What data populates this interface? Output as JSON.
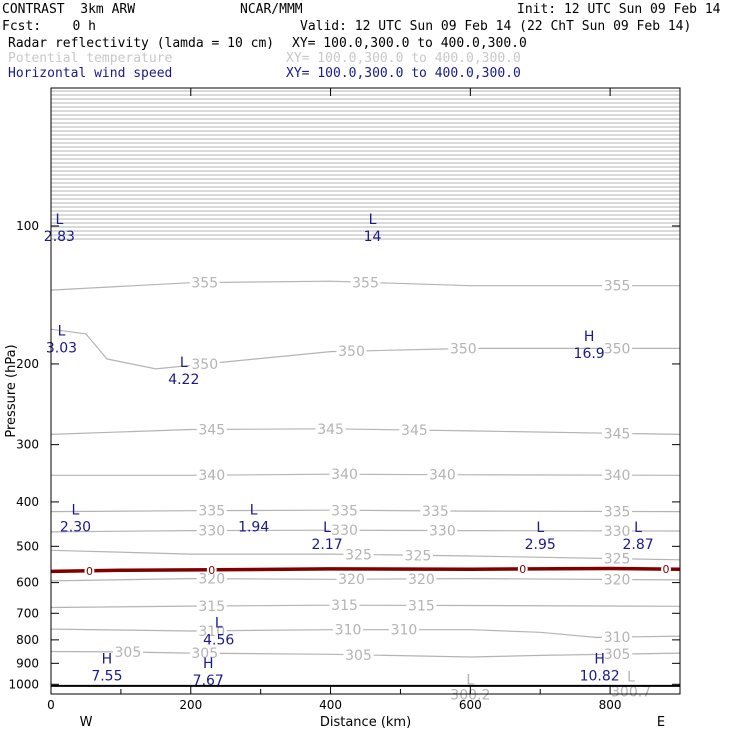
{
  "header": {
    "model": "CONTRAST  3km ARW",
    "center": "NCAR/MMM",
    "init": "Init: 12 UTC Sun 09 Feb 14",
    "fcst": "Fcst:    0 h",
    "valid": "Valid: 12 UTC Sun 09 Feb 14 (22 ChT Sun 09 Feb 14)",
    "fields": [
      {
        "name": "Radar reflectivity (lamda = 10 cm)",
        "xy": "XY= 100.0,300.0 to 400.0,300.0",
        "color": "#000000"
      },
      {
        "name": "Potential temperature",
        "xy": "XY= 100.0,300.0 to 400.0,300.0",
        "color": "#c8c8c8"
      },
      {
        "name": "Horizontal wind speed",
        "xy": "XY= 100.0,300.0 to 400.0,300.0",
        "color": "#1a1a8c"
      }
    ]
  },
  "chart_data": {
    "type": "line",
    "xlabel": "Distance (km)",
    "ylabel": "Pressure (hPa)",
    "xlim": [
      0,
      900
    ],
    "ylim": [
      1050,
      50
    ],
    "y_scale": "log",
    "x_ticks": [
      "0",
      "200",
      "400",
      "600",
      "800"
    ],
    "y_ticks": [
      "100",
      "200",
      "300",
      "400",
      "500",
      "600",
      "700",
      "800",
      "900",
      "1000"
    ],
    "x_end_labels": [
      "W",
      "E"
    ],
    "colors": {
      "theta": "#b4b4b4",
      "wind": "#1a1a8c",
      "trop": "#800000",
      "axis": "#000000"
    },
    "theta_contours": [
      {
        "label": "355",
        "points": [
          [
            0,
            138
          ],
          [
            200,
            133
          ],
          [
            400,
            132
          ],
          [
            600,
            135
          ],
          [
            900,
            135
          ]
        ],
        "label_x": [
          220,
          450,
          810
        ]
      },
      {
        "label": "350",
        "points": [
          [
            0,
            168
          ],
          [
            50,
            172
          ],
          [
            80,
            195
          ],
          [
            150,
            205
          ],
          [
            250,
            198
          ],
          [
            400,
            188
          ],
          [
            600,
            185
          ],
          [
            900,
            185
          ]
        ],
        "label_x": [
          220,
          430,
          590,
          810
        ]
      },
      {
        "label": "345",
        "points": [
          [
            0,
            285
          ],
          [
            200,
            278
          ],
          [
            400,
            277
          ],
          [
            600,
            280
          ],
          [
            900,
            285
          ]
        ],
        "label_x": [
          230,
          400,
          520,
          810
        ]
      },
      {
        "label": "340",
        "points": [
          [
            0,
            350
          ],
          [
            200,
            350
          ],
          [
            400,
            348
          ],
          [
            600,
            349
          ],
          [
            900,
            350
          ]
        ],
        "label_x": [
          230,
          420,
          560,
          810
        ]
      },
      {
        "label": "335",
        "points": [
          [
            0,
            420
          ],
          [
            200,
            418
          ],
          [
            400,
            417
          ],
          [
            600,
            419
          ],
          [
            900,
            420
          ]
        ],
        "label_x": [
          230,
          420,
          550,
          810
        ]
      },
      {
        "label": "330",
        "points": [
          [
            0,
            465
          ],
          [
            200,
            462
          ],
          [
            400,
            461
          ],
          [
            600,
            462
          ],
          [
            900,
            463
          ]
        ],
        "label_x": [
          230,
          420,
          560,
          810
        ]
      },
      {
        "label": "325",
        "points": [
          [
            0,
            510
          ],
          [
            200,
            520
          ],
          [
            400,
            520
          ],
          [
            600,
            525
          ],
          [
            900,
            535
          ]
        ],
        "label_x": [
          440,
          525,
          810
        ]
      },
      {
        "label": "320",
        "points": [
          [
            0,
            595
          ],
          [
            200,
            588
          ],
          [
            400,
            590
          ],
          [
            600,
            588
          ],
          [
            900,
            592
          ]
        ],
        "label_x": [
          230,
          430,
          530,
          810
        ]
      },
      {
        "label": "315",
        "points": [
          [
            0,
            680
          ],
          [
            200,
            675
          ],
          [
            400,
            672
          ],
          [
            600,
            673
          ],
          [
            900,
            676
          ]
        ],
        "label_x": [
          230,
          420,
          530
        ]
      },
      {
        "label": "310",
        "points": [
          [
            0,
            758
          ],
          [
            200,
            765
          ],
          [
            400,
            760
          ],
          [
            600,
            760
          ],
          [
            700,
            770
          ],
          [
            780,
            790
          ],
          [
            900,
            785
          ]
        ],
        "label_x": [
          230,
          425,
          505,
          810
        ]
      },
      {
        "label": "305",
        "points": [
          [
            0,
            848
          ],
          [
            100,
            850
          ],
          [
            200,
            855
          ],
          [
            400,
            860
          ],
          [
            600,
            872
          ],
          [
            700,
            865
          ],
          [
            900,
            855
          ]
        ],
        "label_x": [
          110,
          220,
          440,
          810
        ]
      }
    ],
    "trop_line": {
      "points": [
        [
          0,
          567
        ],
        [
          100,
          564
        ],
        [
          200,
          563
        ],
        [
          400,
          560
        ],
        [
          600,
          561
        ],
        [
          800,
          559
        ],
        [
          900,
          561
        ]
      ],
      "label": "0",
      "label_x": [
        55,
        230,
        675,
        880
      ]
    },
    "wind_extrema": [
      {
        "type": "L",
        "value": "2.83",
        "x": 12,
        "p": 100
      },
      {
        "type": "L",
        "value": "14",
        "x": 460,
        "p": 100
      },
      {
        "type": "L",
        "value": "3.03",
        "x": 15,
        "p": 175
      },
      {
        "type": "H",
        "value": "16.9",
        "x": 770,
        "p": 180
      },
      {
        "type": "L",
        "value": "4.22",
        "x": 190,
        "p": 205
      },
      {
        "type": "L",
        "value": "2.30",
        "x": 35,
        "p": 430
      },
      {
        "type": "L",
        "value": "1.94",
        "x": 290,
        "p": 430
      },
      {
        "type": "L",
        "value": "2.17",
        "x": 395,
        "p": 470
      },
      {
        "type": "L",
        "value": "2.95",
        "x": 700,
        "p": 470
      },
      {
        "type": "L",
        "value": "2.87",
        "x": 840,
        "p": 470
      },
      {
        "type": "L",
        "value": "4.56",
        "x": 240,
        "p": 760
      },
      {
        "type": "H",
        "value": "7.55",
        "x": 80,
        "p": 910
      },
      {
        "type": "H",
        "value": "7.67",
        "x": 225,
        "p": 930
      },
      {
        "type": "H",
        "value": "10.82",
        "x": 785,
        "p": 910
      }
    ],
    "theta_extrema": [
      {
        "type": "L",
        "value": "300.2",
        "x": 600,
        "p": 1010
      },
      {
        "type": "L",
        "value": "300.7",
        "x": 830,
        "p": 995
      }
    ],
    "surface_line_p": 1008
  }
}
